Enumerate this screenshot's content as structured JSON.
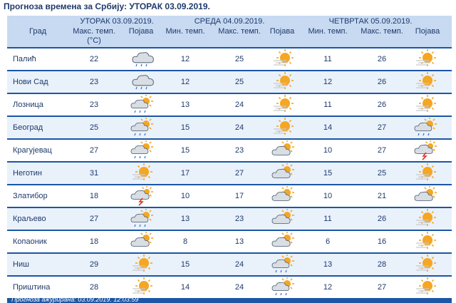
{
  "page_title": "Прогноза времена за Србију: УТОРАК  03.09.2019.",
  "header": {
    "city_col": "Град",
    "days": [
      {
        "label": "УТОРАК  03.09.2019.",
        "max_label": "Макс. темп.",
        "unit": "(°C)",
        "icon_label": "Појава"
      },
      {
        "label": "СРЕДА  04.09.2019.",
        "min_label": "Мин. темп.",
        "max_label": "Макс. темп.",
        "icon_label": "Појава"
      },
      {
        "label": "ЧЕТВРТАК  05.09.2019.",
        "min_label": "Мин. темп.",
        "max_label": "Макс. темп.",
        "icon_label": "Појава"
      }
    ]
  },
  "rows": [
    {
      "city": "Палић",
      "d1_max": "22",
      "d1_icon": "cloud-drizzle-icon",
      "d2_min": "12",
      "d2_max": "25",
      "d2_icon": "sun-haze-icon",
      "d3_min": "11",
      "d3_max": "26",
      "d3_icon": "sun-haze-icon"
    },
    {
      "city": "Нови Сад",
      "d1_max": "23",
      "d1_icon": "cloud-drizzle-icon",
      "d2_min": "12",
      "d2_max": "25",
      "d2_icon": "sun-haze-icon",
      "d3_min": "12",
      "d3_max": "26",
      "d3_icon": "sun-haze-icon"
    },
    {
      "city": "Лозница",
      "d1_max": "23",
      "d1_icon": "partly-cloudy-rain-icon",
      "d2_min": "13",
      "d2_max": "24",
      "d2_icon": "sun-haze-icon",
      "d3_min": "11",
      "d3_max": "26",
      "d3_icon": "sun-haze-icon"
    },
    {
      "city": "Београд",
      "d1_max": "25",
      "d1_icon": "partly-cloudy-rain-icon",
      "d2_min": "15",
      "d2_max": "24",
      "d2_icon": "sun-haze-icon",
      "d3_min": "14",
      "d3_max": "27",
      "d3_icon": "partly-cloudy-rain-icon"
    },
    {
      "city": "Крагујевац",
      "d1_max": "27",
      "d1_icon": "partly-cloudy-rain-icon",
      "d2_min": "15",
      "d2_max": "23",
      "d2_icon": "partly-cloudy-icon",
      "d3_min": "10",
      "d3_max": "27",
      "d3_icon": "thunderstorm-icon"
    },
    {
      "city": "Неготин",
      "d1_max": "31",
      "d1_icon": "sun-haze-icon",
      "d2_min": "17",
      "d2_max": "27",
      "d2_icon": "partly-cloudy-icon",
      "d3_min": "15",
      "d3_max": "25",
      "d3_icon": "sun-haze-icon"
    },
    {
      "city": "Златибор",
      "d1_max": "18",
      "d1_icon": "thunderstorm-icon",
      "d2_min": "10",
      "d2_max": "17",
      "d2_icon": "partly-cloudy-icon",
      "d3_min": "10",
      "d3_max": "21",
      "d3_icon": "partly-cloudy-icon"
    },
    {
      "city": "Краљево",
      "d1_max": "27",
      "d1_icon": "partly-cloudy-rain-icon",
      "d2_min": "13",
      "d2_max": "23",
      "d2_icon": "partly-cloudy-icon",
      "d3_min": "11",
      "d3_max": "26",
      "d3_icon": "sun-haze-icon"
    },
    {
      "city": "Копаоник",
      "d1_max": "18",
      "d1_icon": "partly-cloudy-icon",
      "d2_min": "8",
      "d2_max": "13",
      "d2_icon": "partly-cloudy-icon",
      "d3_min": "6",
      "d3_max": "16",
      "d3_icon": "sun-haze-icon"
    },
    {
      "city": "Ниш",
      "d1_max": "29",
      "d1_icon": "sun-haze-icon",
      "d2_min": "15",
      "d2_max": "24",
      "d2_icon": "partly-cloudy-rain-icon",
      "d3_min": "13",
      "d3_max": "28",
      "d3_icon": "sun-haze-icon"
    },
    {
      "city": "Приштина",
      "d1_max": "28",
      "d1_icon": "sun-haze-icon",
      "d2_min": "14",
      "d2_max": "24",
      "d2_icon": "partly-cloudy-rain-icon",
      "d3_min": "12",
      "d3_max": "27",
      "d3_icon": "sun-haze-icon"
    }
  ],
  "footer": "Прогноза ажурирана:   03.09.2019. 12:03:59",
  "colors": {
    "frame": "#1c56a6",
    "header_bg": "#c7daf2",
    "row_alt": "#e9f1fb",
    "text": "#1f3a6b",
    "sun": "#f5a623",
    "cloud": "#cfd6de"
  }
}
